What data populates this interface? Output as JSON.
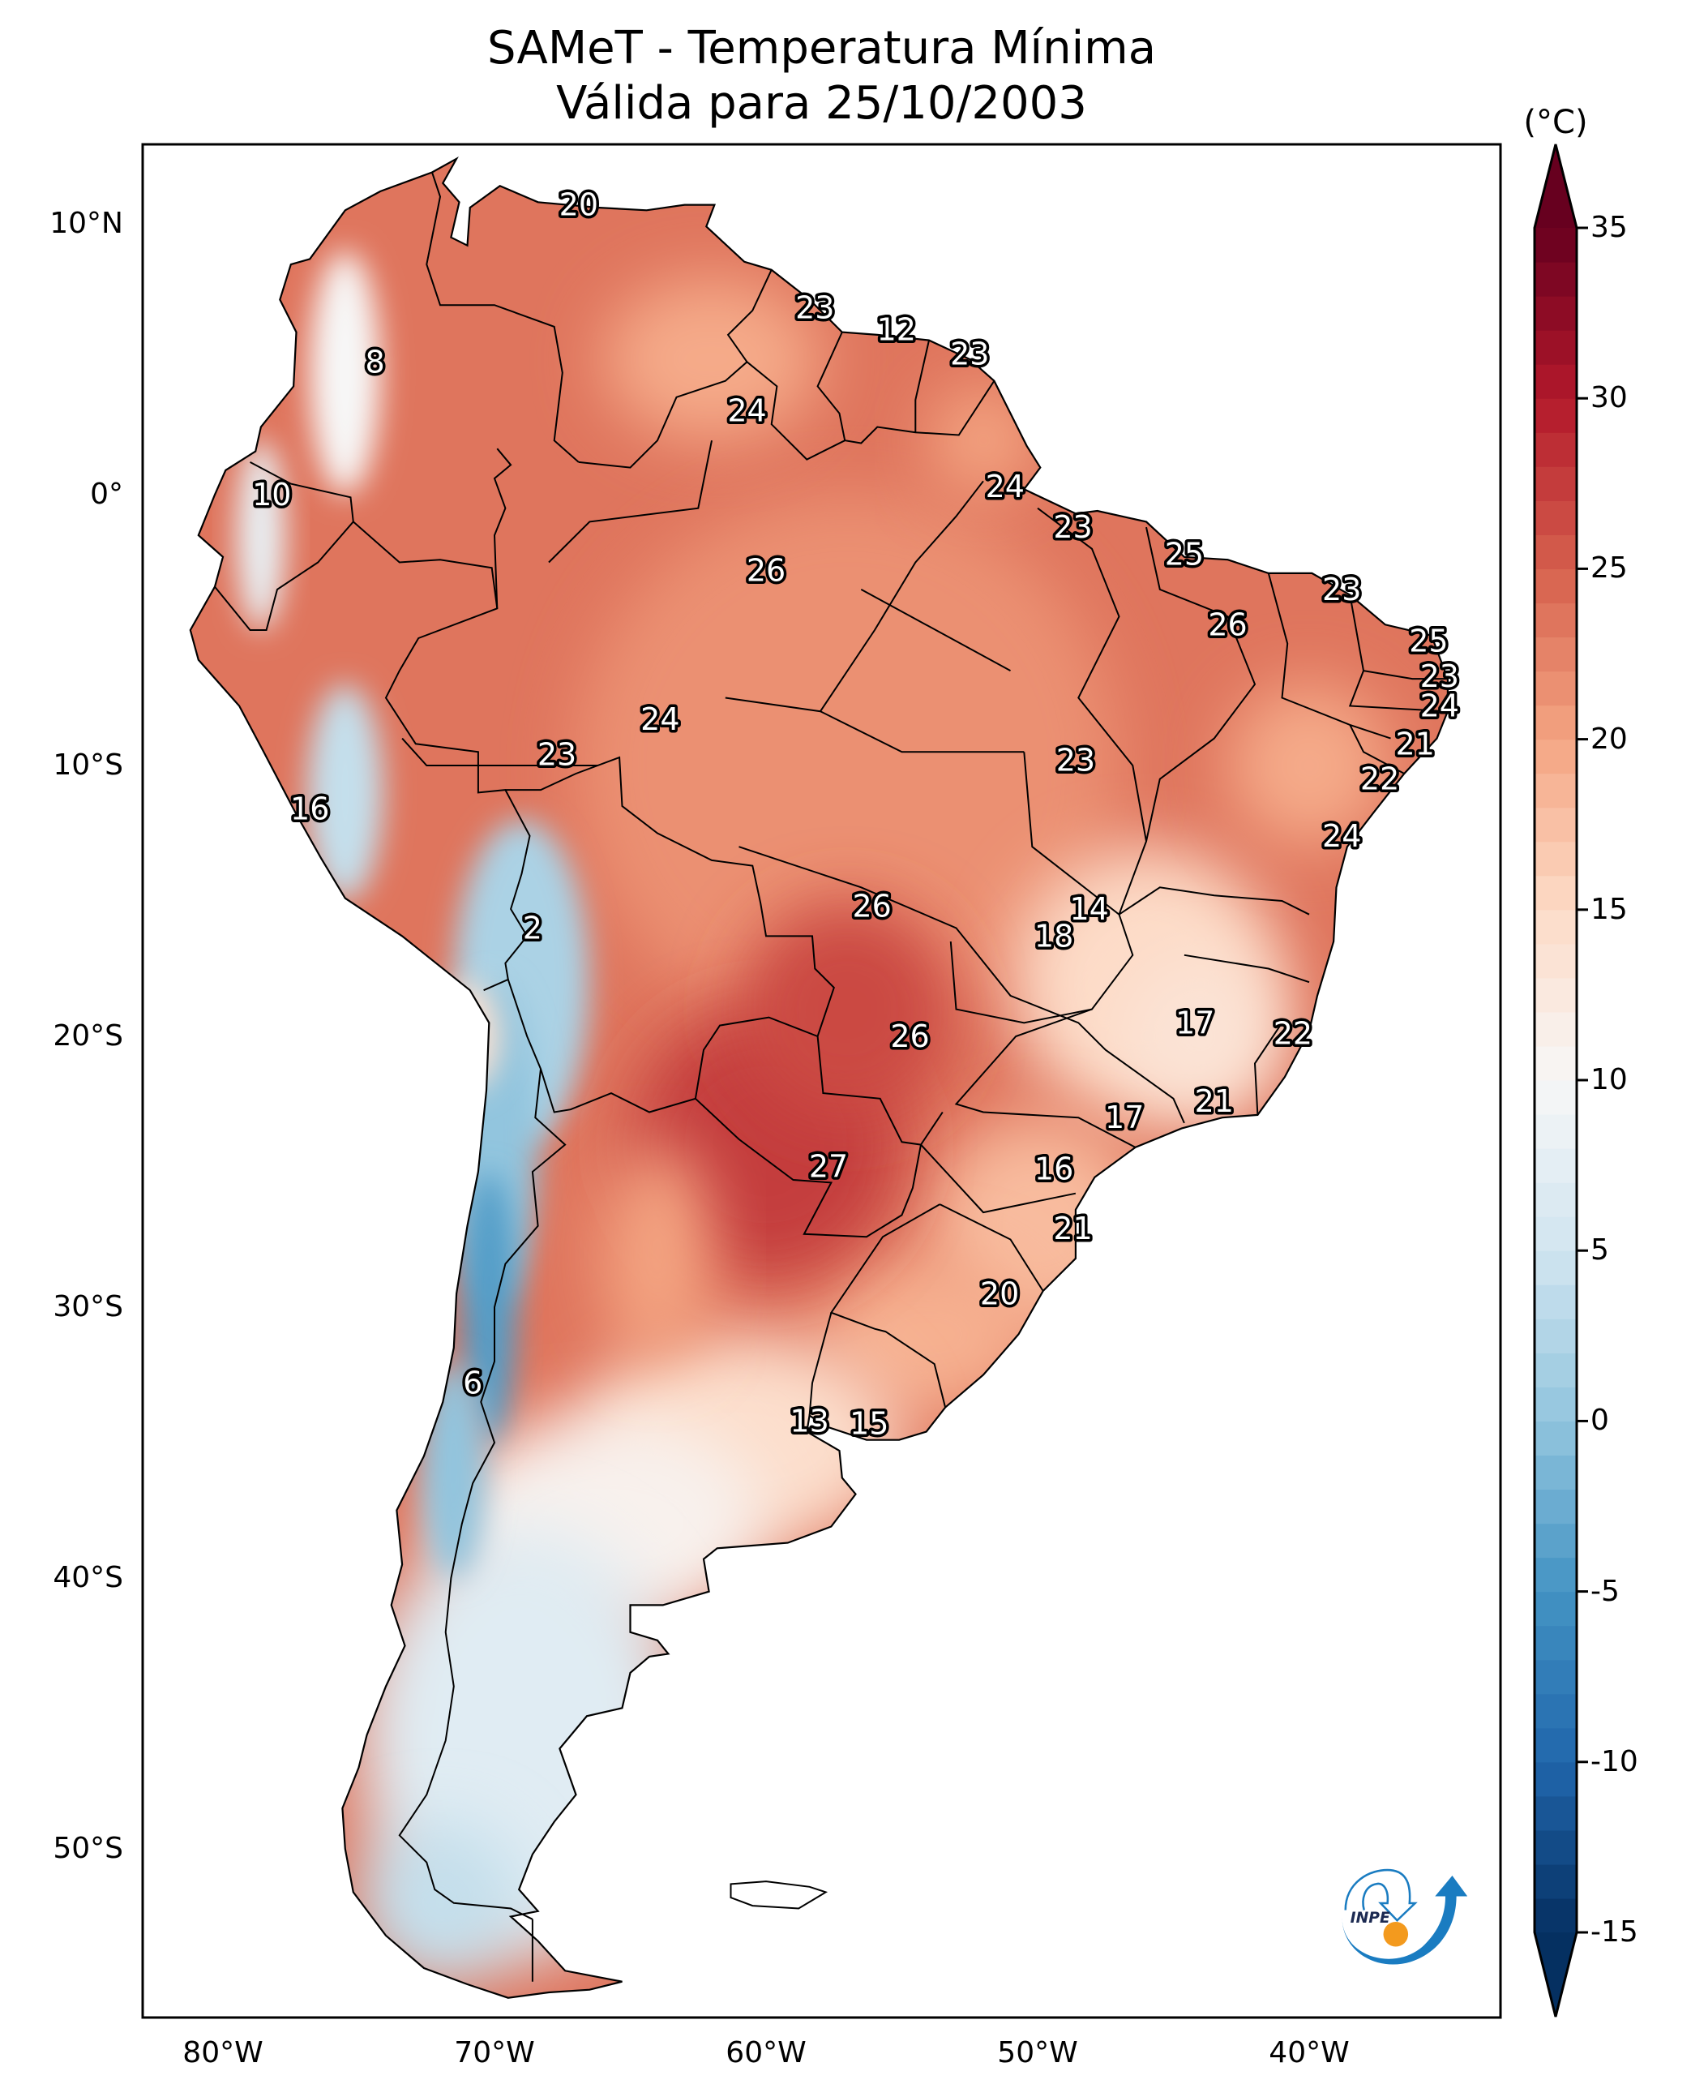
{
  "chart_data": {
    "type": "heatmap",
    "title": "SAMeT - Temperatura Mínima",
    "subtitle": "Válida para 25/10/2003",
    "projection": "PlateCarree",
    "extent": {
      "lon": [
        -83,
        -30
      ],
      "lat": [
        -56.2,
        12.9
      ]
    },
    "x_ticks": [
      {
        "lon": -80,
        "label": "80°W"
      },
      {
        "lon": -70,
        "label": "70°W"
      },
      {
        "lon": -60,
        "label": "60°W"
      },
      {
        "lon": -50,
        "label": "50°W"
      },
      {
        "lon": -40,
        "label": "40°W"
      }
    ],
    "y_ticks": [
      {
        "lat": 10,
        "label": "10°N"
      },
      {
        "lat": 0,
        "label": "0°"
      },
      {
        "lat": -10,
        "label": "10°S"
      },
      {
        "lat": -20,
        "label": "20°S"
      },
      {
        "lat": -30,
        "label": "30°S"
      },
      {
        "lat": -40,
        "label": "40°S"
      },
      {
        "lat": -50,
        "label": "50°S"
      }
    ],
    "colorbar": {
      "unit": "(°C)",
      "min": -15,
      "max": 35,
      "extend": "both",
      "colormap": "RdBu_r",
      "ticks": [
        35,
        30,
        25,
        20,
        15,
        10,
        5,
        0,
        -5,
        -10,
        -15
      ],
      "tick_labels": [
        "35",
        "30",
        "25",
        "20",
        "15",
        "10",
        "5",
        "0",
        "-5",
        "-10",
        "-15"
      ],
      "stops": [
        {
          "v": -15,
          "c": "#053061"
        },
        {
          "v": -10,
          "c": "#2166ac"
        },
        {
          "v": -5,
          "c": "#4393c3"
        },
        {
          "v": 0,
          "c": "#92c5de"
        },
        {
          "v": 5,
          "c": "#d1e5f0"
        },
        {
          "v": 10,
          "c": "#f7f7f7"
        },
        {
          "v": 15,
          "c": "#fddbc7"
        },
        {
          "v": 20,
          "c": "#f4a582"
        },
        {
          "v": 25,
          "c": "#d6604d"
        },
        {
          "v": 30,
          "c": "#b2182b"
        },
        {
          "v": 35,
          "c": "#67001f"
        }
      ]
    },
    "station_labels": [
      {
        "lon": -66.9,
        "lat": 10.7,
        "value": "20"
      },
      {
        "lon": -74.4,
        "lat": 4.9,
        "value": "8"
      },
      {
        "lon": -78.2,
        "lat": 0.0,
        "value": "10"
      },
      {
        "lon": -58.2,
        "lat": 6.9,
        "value": "23"
      },
      {
        "lon": -55.2,
        "lat": 6.1,
        "value": "12"
      },
      {
        "lon": -52.5,
        "lat": 5.2,
        "value": "23"
      },
      {
        "lon": -60.7,
        "lat": 3.1,
        "value": "24"
      },
      {
        "lon": -51.2,
        "lat": 0.3,
        "value": "24"
      },
      {
        "lon": -48.7,
        "lat": -1.2,
        "value": "23"
      },
      {
        "lon": -44.6,
        "lat": -2.2,
        "value": "25"
      },
      {
        "lon": -38.8,
        "lat": -3.5,
        "value": "23"
      },
      {
        "lon": -60.0,
        "lat": -2.8,
        "value": "26"
      },
      {
        "lon": -43.0,
        "lat": -4.8,
        "value": "26"
      },
      {
        "lon": -35.6,
        "lat": -5.4,
        "value": "25"
      },
      {
        "lon": -35.2,
        "lat": -6.7,
        "value": "23"
      },
      {
        "lon": -35.2,
        "lat": -7.8,
        "value": "24"
      },
      {
        "lon": -36.1,
        "lat": -9.2,
        "value": "21"
      },
      {
        "lon": -37.4,
        "lat": -10.5,
        "value": "22"
      },
      {
        "lon": -63.9,
        "lat": -8.3,
        "value": "24"
      },
      {
        "lon": -67.7,
        "lat": -9.6,
        "value": "23"
      },
      {
        "lon": -48.6,
        "lat": -9.8,
        "value": "23"
      },
      {
        "lon": -76.8,
        "lat": -11.6,
        "value": "16"
      },
      {
        "lon": -38.8,
        "lat": -12.6,
        "value": "24"
      },
      {
        "lon": -68.6,
        "lat": -16.0,
        "value": "2"
      },
      {
        "lon": -56.1,
        "lat": -15.2,
        "value": "26"
      },
      {
        "lon": -48.1,
        "lat": -15.3,
        "value": "14"
      },
      {
        "lon": -49.4,
        "lat": -16.3,
        "value": "18"
      },
      {
        "lon": -44.2,
        "lat": -19.5,
        "value": "17"
      },
      {
        "lon": -40.6,
        "lat": -19.9,
        "value": "22"
      },
      {
        "lon": -54.7,
        "lat": -20.0,
        "value": "26"
      },
      {
        "lon": -43.5,
        "lat": -22.4,
        "value": "21"
      },
      {
        "lon": -46.8,
        "lat": -23.0,
        "value": "17"
      },
      {
        "lon": -57.7,
        "lat": -24.8,
        "value": "27"
      },
      {
        "lon": -49.4,
        "lat": -24.9,
        "value": "16"
      },
      {
        "lon": -48.7,
        "lat": -27.1,
        "value": "21"
      },
      {
        "lon": -51.4,
        "lat": -29.5,
        "value": "20"
      },
      {
        "lon": -70.8,
        "lat": -32.8,
        "value": "6"
      },
      {
        "lon": -58.4,
        "lat": -34.2,
        "value": "13"
      },
      {
        "lon": -56.2,
        "lat": -34.3,
        "value": "15"
      }
    ],
    "temperature_regions": [
      {
        "name": "amazon-north",
        "value": 24
      },
      {
        "name": "andes-north",
        "value": 8
      },
      {
        "name": "altiplano",
        "value": 2
      },
      {
        "name": "central-chaco",
        "value": 27
      },
      {
        "name": "southeast-brazil",
        "value": 17
      },
      {
        "name": "patagonia",
        "value": 6
      },
      {
        "name": "southern-andes",
        "value": -3
      }
    ]
  },
  "logo": {
    "text": "INPE",
    "ring_color": "#1a7cc1",
    "dot_color": "#f39a1e"
  }
}
